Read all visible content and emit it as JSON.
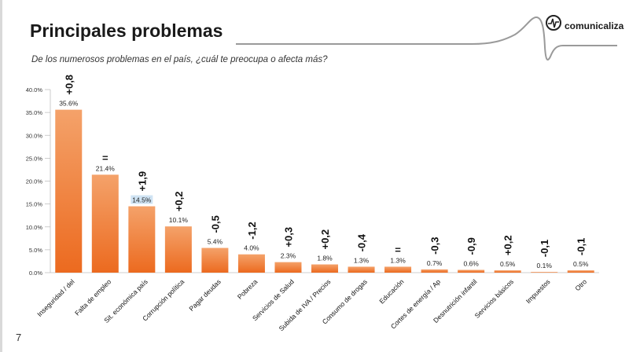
{
  "slide": {
    "title": "Principales problemas",
    "subtitle": "De los numerosos problemas en el país, ¿cuál te preocupa o afecta más?",
    "page_number": "7",
    "logo_text": "comunicaliza",
    "logo_icon": "wave-logo-icon"
  },
  "colors": {
    "bar_top": "#F4A26A",
    "bar_bottom": "#EC6A1F",
    "highlight_label_bg": "#CFE3F3",
    "axis": "#bfbfbf"
  },
  "chart_data": {
    "type": "bar",
    "title": "Principales problemas",
    "xlabel": "",
    "ylabel": "",
    "ylim": [
      0,
      40
    ],
    "yticks": [
      "0.0%",
      "5.0%",
      "10.0%",
      "15.0%",
      "20.0%",
      "25.0%",
      "30.0%",
      "35.0%",
      "40.0%"
    ],
    "categories": [
      "Inseguridad / del",
      "Falta de empleo",
      "Sit. económica país",
      "Corrupción política",
      "Pagar deudas",
      "Pobreza",
      "Servicios de Salud",
      "Subida de IVA / Precios",
      "Consumo de drogas",
      "Educación",
      "Cortes de energía / Ap",
      "Desnutrición infantil",
      "Servicios básicos",
      "Impuestos",
      "Otro"
    ],
    "values": [
      35.6,
      21.4,
      14.5,
      10.1,
      5.4,
      4.0,
      2.3,
      1.8,
      1.3,
      1.3,
      0.7,
      0.6,
      0.5,
      0.1,
      0.5
    ],
    "labels": [
      "35.6%",
      "21.4%",
      "14.5%",
      "10.1%",
      "5.4%",
      "4.0%",
      "2.3%",
      "1.8%",
      "1.3%",
      "1.3%",
      "0.7%",
      "0.6%",
      "0.5%",
      "0.1%",
      "0.5%"
    ],
    "changes": [
      "+0,8",
      "=",
      "+1,9",
      "+0,2",
      "-0,5",
      "-1,2",
      "+0,3",
      "+0,2",
      "-0,4",
      "=",
      "-0,3",
      "-0,9",
      "+0,2",
      "-0,1",
      "-0,1"
    ],
    "highlighted_index": 2
  }
}
